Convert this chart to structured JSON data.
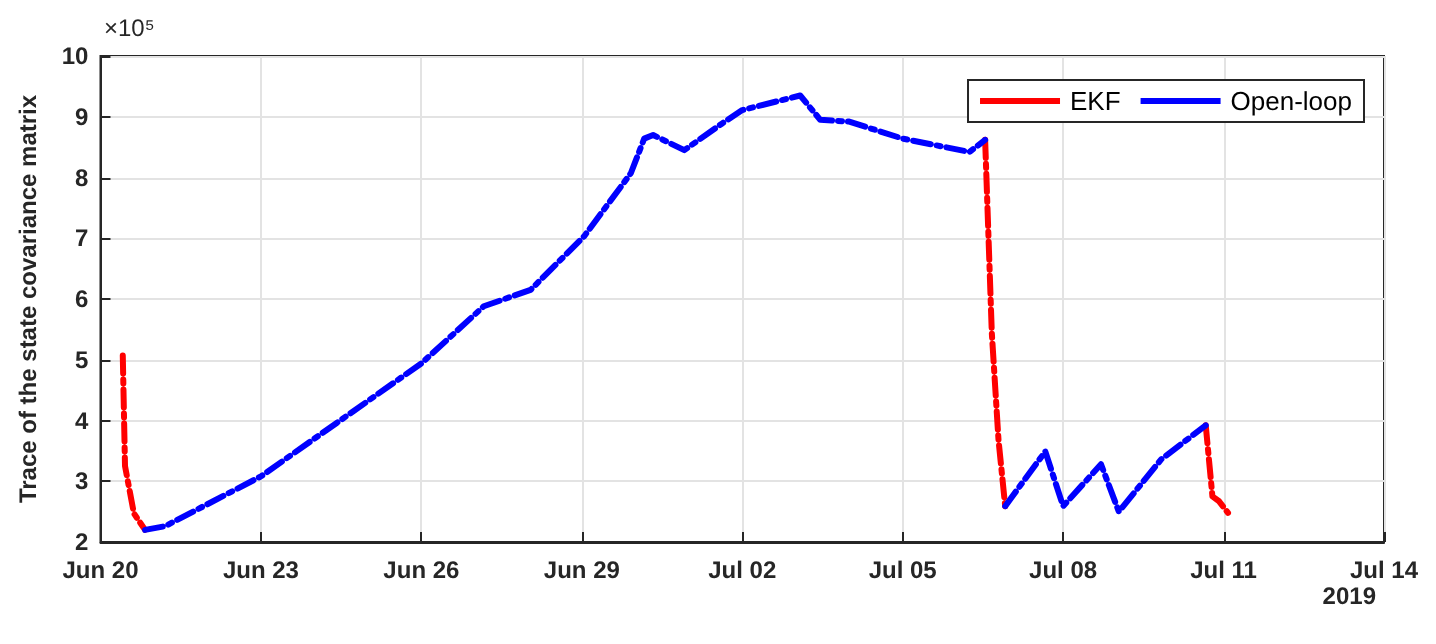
{
  "chart_data": {
    "type": "line",
    "ylabel": "Trace of the state covariance matrix",
    "annotations": [
      "×10⁵",
      "2019"
    ],
    "xlim": [
      "2019-06-20",
      "2019-07-14"
    ],
    "xticks": [
      {
        "value": "2019-06-20",
        "label": "Jun 20"
      },
      {
        "value": "2019-06-23",
        "label": "Jun 23"
      },
      {
        "value": "2019-06-26",
        "label": "Jun 26"
      },
      {
        "value": "2019-06-29",
        "label": "Jun 29"
      },
      {
        "value": "2019-07-02",
        "label": "Jul 02"
      },
      {
        "value": "2019-07-05",
        "label": "Jul 05"
      },
      {
        "value": "2019-07-08",
        "label": "Jul 08"
      },
      {
        "value": "2019-07-11",
        "label": "Jul 11"
      },
      {
        "value": "2019-07-14",
        "label": "Jul 14"
      }
    ],
    "ylim": [
      2,
      10
    ],
    "yticks": [
      2,
      3,
      4,
      5,
      6,
      7,
      8,
      9,
      10
    ],
    "grid": true,
    "legend": "top right",
    "line_style": "dashed",
    "marker": "none",
    "series": [
      {
        "name": "EKF",
        "color": "#ff0000",
        "x": [
          "2019-06-20T10:00",
          "2019-06-20T11:00",
          "2019-06-20T15:00",
          "2019-06-20T20:00",
          "2019-06-28T00:00",
          "2019-07-06T13:00",
          "2019-07-06T16:00",
          "2019-07-06T19:00",
          "2019-07-06T22:00",
          "2019-07-08T12:00",
          "2019-07-10T16:00",
          "2019-07-10T19:00",
          "2019-07-10T22:00",
          "2019-07-11T02:00"
        ],
        "values": [
          5.07,
          3.25,
          2.47,
          2.2,
          null,
          8.62,
          5.44,
          3.68,
          2.59,
          null,
          3.92,
          2.75,
          2.67,
          2.48
        ]
      },
      {
        "name": "Open-loop",
        "color": "#0000ff",
        "x": [
          "2019-06-20T20:00",
          "2019-06-21T05:00",
          "2019-06-23T00:00",
          "2019-06-24T10:00",
          "2019-06-26T00:00",
          "2019-06-27T04:00",
          "2019-06-28T01:00",
          "2019-06-29T01:00",
          "2019-06-29T22:00",
          "2019-06-30T04:00",
          "2019-06-30T08:00",
          "2019-06-30T22:00",
          "2019-07-01T15:00",
          "2019-07-02T00:00",
          "2019-07-03T02:00",
          "2019-07-03T11:00",
          "2019-07-04T00:00",
          "2019-07-05T00:00",
          "2019-07-06T06:00",
          "2019-07-06T13:00",
          "2019-07-06T18:00",
          "2019-07-06T22:00",
          "2019-07-07T16:00",
          "2019-07-08T00:00",
          "2019-07-08T17:00",
          "2019-07-09T01:00",
          "2019-07-09T20:00",
          "2019-07-10T16:00"
        ],
        "values": [
          2.2,
          2.26,
          3.08,
          3.96,
          4.94,
          5.88,
          6.15,
          7.03,
          8.07,
          8.64,
          8.7,
          8.45,
          8.89,
          9.11,
          9.35,
          8.95,
          8.92,
          8.64,
          8.42,
          8.62,
          null,
          2.59,
          3.49,
          2.59,
          3.28,
          2.5,
          3.36,
          3.92
        ]
      }
    ]
  }
}
